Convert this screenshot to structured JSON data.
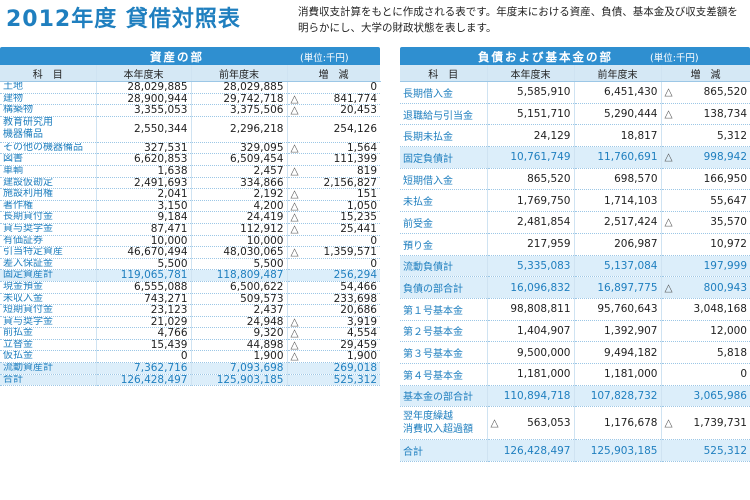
{
  "title": "2012年度 貸借対照表",
  "intro": "消費収支計算をもとに作成される表です。年度末における資産、負債、基本金及び収支差額を明らかにし、大学の財政状態を表します。",
  "neg_mark": "△",
  "assets": {
    "heading": "資産の部",
    "unit": "(単位:千円)",
    "col_headers": [
      "科　目",
      "本年度末",
      "前年度末",
      "増　減"
    ],
    "rows": [
      {
        "name": "土地",
        "cur": "28,029,885",
        "prev": "28,029,885",
        "diff": "0",
        "neg": false
      },
      {
        "name": "建物",
        "cur": "28,900,944",
        "prev": "29,742,718",
        "diff": "841,774",
        "neg": true
      },
      {
        "name": "構築物",
        "cur": "3,355,053",
        "prev": "3,375,506",
        "diff": "20,453",
        "neg": true
      },
      {
        "name": "教育研究用\n機器備品",
        "cur": "2,550,344",
        "prev": "2,296,218",
        "diff": "254,126",
        "neg": false,
        "tall": true
      },
      {
        "name": "その他の機器備品",
        "cur": "327,531",
        "prev": "329,095",
        "diff": "1,564",
        "neg": true
      },
      {
        "name": "図書",
        "cur": "6,620,853",
        "prev": "6,509,454",
        "diff": "111,399",
        "neg": false
      },
      {
        "name": "車輌",
        "cur": "1,638",
        "prev": "2,457",
        "diff": "819",
        "neg": true
      },
      {
        "name": "建設仮勘定",
        "cur": "2,491,693",
        "prev": "334,866",
        "diff": "2,156,827",
        "neg": false
      },
      {
        "name": "施設利用権",
        "cur": "2,041",
        "prev": "2,192",
        "diff": "151",
        "neg": true
      },
      {
        "name": "著作権",
        "cur": "3,150",
        "prev": "4,200",
        "diff": "1,050",
        "neg": true
      },
      {
        "name": "長期貸付金",
        "cur": "9,184",
        "prev": "24,419",
        "diff": "15,235",
        "neg": true
      },
      {
        "name": "貸与奨学金",
        "cur": "87,471",
        "prev": "112,912",
        "diff": "25,441",
        "neg": true
      },
      {
        "name": "有価証券",
        "cur": "10,000",
        "prev": "10,000",
        "diff": "0",
        "neg": false
      },
      {
        "name": "引当特定資産",
        "cur": "46,670,494",
        "prev": "48,030,065",
        "diff": "1,359,571",
        "neg": true
      },
      {
        "name": "差入保証金",
        "cur": "5,500",
        "prev": "5,500",
        "diff": "0",
        "neg": false
      },
      {
        "name": "固定資産計",
        "cur": "119,065,781",
        "prev": "118,809,487",
        "diff": "256,294",
        "neg": false,
        "sub": true
      },
      {
        "name": "現金預金",
        "cur": "6,555,088",
        "prev": "6,500,622",
        "diff": "54,466",
        "neg": false
      },
      {
        "name": "未収入金",
        "cur": "743,271",
        "prev": "509,573",
        "diff": "233,698",
        "neg": false
      },
      {
        "name": "短期貸付金",
        "cur": "23,123",
        "prev": "2,437",
        "diff": "20,686",
        "neg": false
      },
      {
        "name": "貸与奨学金",
        "cur": "21,029",
        "prev": "24,948",
        "diff": "3,919",
        "neg": true
      },
      {
        "name": "前払金",
        "cur": "4,766",
        "prev": "9,320",
        "diff": "4,554",
        "neg": true
      },
      {
        "name": "立替金",
        "cur": "15,439",
        "prev": "44,898",
        "diff": "29,459",
        "neg": true
      },
      {
        "name": "仮払金",
        "cur": "0",
        "prev": "1,900",
        "diff": "1,900",
        "neg": true
      },
      {
        "name": "流動資産計",
        "cur": "7,362,716",
        "prev": "7,093,698",
        "diff": "269,018",
        "neg": false,
        "sub": true
      },
      {
        "name": "合計",
        "cur": "126,428,497",
        "prev": "125,903,185",
        "diff": "525,312",
        "neg": false,
        "sub": true
      }
    ]
  },
  "liabilities": {
    "heading": "負債および基本金の部",
    "unit": "(単位:千円)",
    "col_headers": [
      "科　目",
      "本年度末",
      "前年度末",
      "増　減"
    ],
    "rows": [
      {
        "name": "長期借入金",
        "cur": "5,585,910",
        "prev": "6,451,430",
        "diff": "865,520",
        "neg": true
      },
      {
        "name": "退職給与引当金",
        "cur": "5,151,710",
        "prev": "5,290,444",
        "diff": "138,734",
        "neg": true
      },
      {
        "name": "長期未払金",
        "cur": "24,129",
        "prev": "18,817",
        "diff": "5,312",
        "neg": false
      },
      {
        "name": "固定負債計",
        "cur": "10,761,749",
        "prev": "11,760,691",
        "diff": "998,942",
        "neg": true,
        "sub": true
      },
      {
        "name": "短期借入金",
        "cur": "865,520",
        "prev": "698,570",
        "diff": "166,950",
        "neg": false
      },
      {
        "name": "未払金",
        "cur": "1,769,750",
        "prev": "1,714,103",
        "diff": "55,647",
        "neg": false
      },
      {
        "name": "前受金",
        "cur": "2,481,854",
        "prev": "2,517,424",
        "diff": "35,570",
        "neg": true
      },
      {
        "name": "預り金",
        "cur": "217,959",
        "prev": "206,987",
        "diff": "10,972",
        "neg": false
      },
      {
        "name": "流動負債計",
        "cur": "5,335,083",
        "prev": "5,137,084",
        "diff": "197,999",
        "neg": false,
        "sub": true
      },
      {
        "name": "負債の部合計",
        "cur": "16,096,832",
        "prev": "16,897,775",
        "diff": "800,943",
        "neg": true,
        "sub": true
      },
      {
        "name": "第１号基本金",
        "cur": "98,808,811",
        "prev": "95,760,643",
        "diff": "3,048,168",
        "neg": false
      },
      {
        "name": "第２号基本金",
        "cur": "1,404,907",
        "prev": "1,392,907",
        "diff": "12,000",
        "neg": false
      },
      {
        "name": "第３号基本金",
        "cur": "9,500,000",
        "prev": "9,494,182",
        "diff": "5,818",
        "neg": false
      },
      {
        "name": "第４号基本金",
        "cur": "1,181,000",
        "prev": "1,181,000",
        "diff": "0",
        "neg": false
      },
      {
        "name": "基本金の部合計",
        "cur": "110,894,718",
        "prev": "107,828,732",
        "diff": "3,065,986",
        "neg": false,
        "sub": true
      },
      {
        "name": "翌年度繰越\n消費収入超過額",
        "cur": "563,053",
        "cur_neg": true,
        "prev": "1,176,678",
        "diff": "1,739,731",
        "neg": true,
        "tall": true
      },
      {
        "name": "合計",
        "cur": "126,428,497",
        "prev": "125,903,185",
        "diff": "525,312",
        "neg": false,
        "sub": true
      }
    ]
  }
}
